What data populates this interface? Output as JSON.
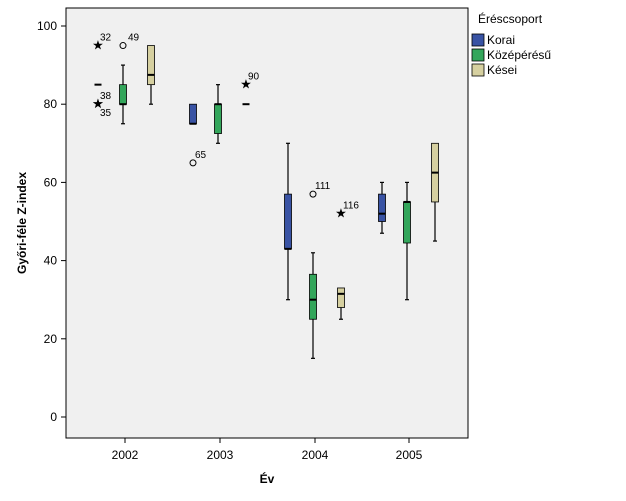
{
  "chart_data": {
    "type": "boxplot",
    "xlabel": "Év",
    "ylabel": "Győri-féle Z-index",
    "ylim": [
      0,
      105
    ],
    "yticks": [
      0,
      20,
      40,
      60,
      80,
      100
    ],
    "categories": [
      "2002",
      "2003",
      "2004",
      "2005"
    ],
    "legend": {
      "title": "Éréscsoport",
      "position": "right"
    },
    "series": [
      {
        "name": "Korai",
        "color": "#3953a4",
        "boxes": [
          {
            "category": "2002",
            "min": 85,
            "q1": 85,
            "median": 85,
            "q3": 85,
            "max": 85,
            "outliers": [
              {
                "value": 95,
                "label": "32",
                "marker": "star"
              },
              {
                "value": 80,
                "label": "38",
                "marker": "star"
              },
              {
                "value": 80,
                "label": "35",
                "marker": "star"
              }
            ]
          },
          {
            "category": "2003",
            "min": 75,
            "q1": 75,
            "median": 75,
            "q3": 80,
            "max": 80,
            "outliers": [
              {
                "value": 65,
                "label": "65",
                "marker": "circle"
              }
            ]
          },
          {
            "category": "2004",
            "min": 30,
            "q1": 43,
            "median": 43,
            "q3": 57,
            "max": 70,
            "outliers": []
          },
          {
            "category": "2005",
            "min": 47,
            "q1": 50,
            "median": 52,
            "q3": 57,
            "max": 60,
            "outliers": []
          }
        ]
      },
      {
        "name": "Középérésű",
        "color": "#33a65b",
        "boxes": [
          {
            "category": "2002",
            "min": 75,
            "q1": 80,
            "median": 80,
            "q3": 85,
            "max": 90,
            "outliers": [
              {
                "value": 95,
                "label": "49",
                "marker": "circle"
              }
            ]
          },
          {
            "category": "2003",
            "min": 70,
            "q1": 72.5,
            "median": 80,
            "q3": 80,
            "max": 85,
            "outliers": []
          },
          {
            "category": "2004",
            "min": 15,
            "q1": 25,
            "median": 30,
            "q3": 36.5,
            "max": 42,
            "outliers": [
              {
                "value": 57,
                "label": "111",
                "marker": "circle"
              }
            ]
          },
          {
            "category": "2005",
            "min": 30,
            "q1": 44.5,
            "median": 55,
            "q3": 55,
            "max": 60,
            "outliers": []
          }
        ]
      },
      {
        "name": "Kései",
        "color": "#d6d0a0",
        "boxes": [
          {
            "category": "2002",
            "min": 80,
            "q1": 85,
            "median": 87.5,
            "q3": 95,
            "max": 95,
            "outliers": []
          },
          {
            "category": "2003",
            "min": 80,
            "q1": 80,
            "median": 80,
            "q3": 80,
            "max": 80,
            "outliers": [
              {
                "value": 85,
                "label": "90",
                "marker": "star"
              }
            ]
          },
          {
            "category": "2004",
            "min": 25,
            "q1": 28,
            "median": 31.5,
            "q3": 33,
            "max": 33,
            "outliers": [
              {
                "value": 52,
                "label": "116",
                "marker": "star"
              }
            ]
          },
          {
            "category": "2005",
            "min": 45,
            "q1": 55,
            "median": 62.5,
            "q3": 70,
            "max": 70,
            "outliers": []
          }
        ]
      }
    ]
  }
}
